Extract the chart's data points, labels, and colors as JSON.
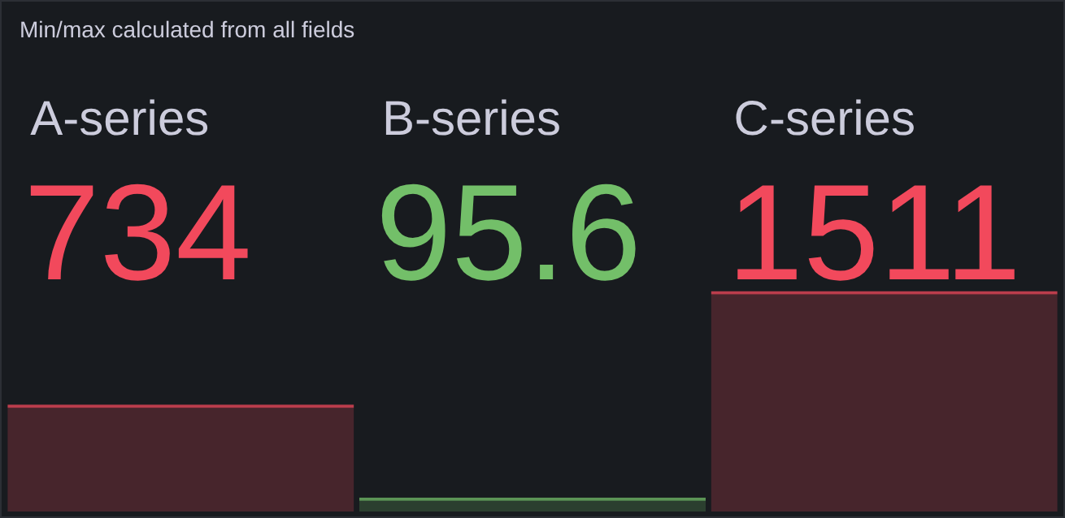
{
  "chart_data": {
    "type": "bar",
    "title": "Min/max calculated from all fields",
    "categories": [
      "A-series",
      "B-series",
      "C-series"
    ],
    "values": [
      734,
      95.6,
      1511
    ],
    "colors": [
      "#f2495c",
      "#73bf69",
      "#f2495c"
    ],
    "data_labels": true
  }
}
